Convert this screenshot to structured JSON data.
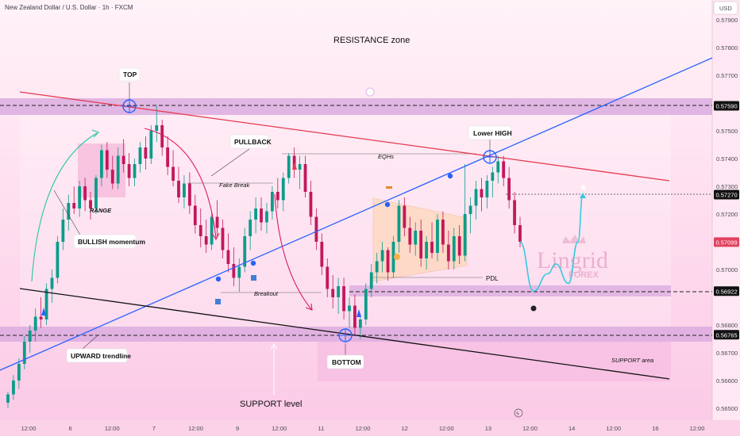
{
  "header": {
    "symbol": "New Zealand Dollar / U.S. Dollar · 1h · FXCM",
    "currency": "USD"
  },
  "colors": {
    "bull": "#0b9c8a",
    "bear": "#c2185b",
    "resistance_line": "#e53950",
    "trendline": "#2962ff",
    "support_line": "#111111",
    "projection": "#38c9e0",
    "zone": "#d8a9df",
    "background": "#ffe9f4"
  },
  "annotations": {
    "resistance_zone": "RESISTANCE zone",
    "top": "TOP",
    "pullback": "PULLBACK",
    "lower_high": "Lower HIGH",
    "eqhs": "EQHs",
    "fake_break": "Fake Break",
    "range": "RANGE",
    "bullish_momentum": "BULLISH momentum",
    "breakout": "Breakout",
    "pdl": "PDL",
    "bottom": "BOTTOM",
    "upward_trendline": "UPWARD trendline",
    "support_level": "SUPPORT level",
    "support_area": "SUPPORT area",
    "watermark_main": "Lingrid",
    "watermark_sub": "FOREX"
  },
  "price_axis": {
    "ticks": [
      "0.57900",
      "0.57800",
      "0.57700",
      "0.57500",
      "0.57400",
      "0.57300",
      "0.57200",
      "0.57000",
      "0.56800",
      "0.56700",
      "0.56600",
      "0.56500"
    ],
    "tags": [
      {
        "label": "0.57590",
        "style": "dark"
      },
      {
        "label": "0.57270",
        "style": "dark"
      },
      {
        "label": "0.57099",
        "style": "red"
      },
      {
        "label": "0.56922",
        "style": "dark"
      },
      {
        "label": "0.56765",
        "style": "dark"
      }
    ]
  },
  "time_axis": {
    "ticks": [
      "12:00",
      "6",
      "12:00",
      "7",
      "12:00",
      "9",
      "12:00",
      "11",
      "12:00",
      "12",
      "12:00",
      "13",
      "12:00",
      "14",
      "12:00",
      "16",
      "12:00"
    ]
  },
  "chart_data": {
    "type": "candlestick",
    "instrument": "New Zealand Dollar / U.S. Dollar",
    "timeframe": "1h",
    "levels": {
      "resistance": 0.5759,
      "target": 0.5727,
      "last_price": 0.57099,
      "mid_support": 0.56922,
      "support": 0.56765
    },
    "candles": [
      [
        0.5652,
        0.5656,
        0.565,
        0.5655
      ],
      [
        0.5655,
        0.5662,
        0.5653,
        0.566
      ],
      [
        0.566,
        0.5668,
        0.5657,
        0.5666
      ],
      [
        0.5666,
        0.5676,
        0.5664,
        0.5674
      ],
      [
        0.5674,
        0.568,
        0.567,
        0.5678
      ],
      [
        0.5678,
        0.5686,
        0.5674,
        0.5683
      ],
      [
        0.5683,
        0.569,
        0.5679,
        0.5682
      ],
      [
        0.5682,
        0.5695,
        0.568,
        0.5693
      ],
      [
        0.5693,
        0.57,
        0.5688,
        0.5697
      ],
      [
        0.5697,
        0.5712,
        0.5695,
        0.571
      ],
      [
        0.571,
        0.5722,
        0.5707,
        0.5718
      ],
      [
        0.5718,
        0.5727,
        0.5714,
        0.5724
      ],
      [
        0.5724,
        0.573,
        0.572,
        0.5722
      ],
      [
        0.5722,
        0.5732,
        0.5719,
        0.573
      ],
      [
        0.573,
        0.5733,
        0.5721,
        0.5725
      ],
      [
        0.5725,
        0.5728,
        0.5718,
        0.5722
      ],
      [
        0.5722,
        0.5734,
        0.572,
        0.5733
      ],
      [
        0.5733,
        0.5745,
        0.573,
        0.5743
      ],
      [
        0.5743,
        0.5746,
        0.5733,
        0.5736
      ],
      [
        0.5736,
        0.5741,
        0.5729,
        0.5731
      ],
      [
        0.5731,
        0.5744,
        0.5729,
        0.5741
      ],
      [
        0.5741,
        0.5747,
        0.5735,
        0.5738
      ],
      [
        0.5738,
        0.5742,
        0.573,
        0.5733
      ],
      [
        0.5733,
        0.574,
        0.573,
        0.5738
      ],
      [
        0.5738,
        0.5746,
        0.5735,
        0.5744
      ],
      [
        0.5744,
        0.5748,
        0.5736,
        0.574
      ],
      [
        0.574,
        0.5752,
        0.5738,
        0.575
      ],
      [
        0.575,
        0.5759,
        0.5746,
        0.5752
      ],
      [
        0.5752,
        0.5754,
        0.5741,
        0.5744
      ],
      [
        0.5744,
        0.5748,
        0.5734,
        0.5737
      ],
      [
        0.5737,
        0.5743,
        0.573,
        0.5732
      ],
      [
        0.5732,
        0.5737,
        0.5724,
        0.5726
      ],
      [
        0.5726,
        0.5734,
        0.5722,
        0.5731
      ],
      [
        0.5731,
        0.5735,
        0.572,
        0.5723
      ],
      [
        0.5723,
        0.5727,
        0.5713,
        0.5716
      ],
      [
        0.5716,
        0.5722,
        0.5708,
        0.5712
      ],
      [
        0.5712,
        0.5718,
        0.5706,
        0.5709
      ],
      [
        0.5709,
        0.5721,
        0.5707,
        0.5719
      ],
      [
        0.5719,
        0.5725,
        0.5712,
        0.5715
      ],
      [
        0.5715,
        0.5718,
        0.5704,
        0.5707
      ],
      [
        0.5707,
        0.5713,
        0.5699,
        0.5702
      ],
      [
        0.5702,
        0.5708,
        0.5694,
        0.5697
      ],
      [
        0.5697,
        0.5704,
        0.5692,
        0.5701
      ],
      [
        0.5701,
        0.5715,
        0.5699,
        0.5712
      ],
      [
        0.5712,
        0.5721,
        0.5707,
        0.5718
      ],
      [
        0.5718,
        0.5726,
        0.5713,
        0.5722
      ],
      [
        0.5722,
        0.5726,
        0.5714,
        0.5717
      ],
      [
        0.5717,
        0.5724,
        0.5713,
        0.5721
      ],
      [
        0.5721,
        0.573,
        0.5718,
        0.5728
      ],
      [
        0.5728,
        0.5733,
        0.5722,
        0.5725
      ],
      [
        0.5725,
        0.5735,
        0.5721,
        0.5733
      ],
      [
        0.5733,
        0.5742,
        0.5731,
        0.5741
      ],
      [
        0.5741,
        0.5744,
        0.5733,
        0.5736
      ],
      [
        0.5736,
        0.5741,
        0.5729,
        0.5738
      ],
      [
        0.5738,
        0.5741,
        0.5726,
        0.5728
      ],
      [
        0.5728,
        0.5732,
        0.5716,
        0.5719
      ],
      [
        0.5719,
        0.5722,
        0.5707,
        0.571
      ],
      [
        0.571,
        0.5713,
        0.5698,
        0.5701
      ],
      [
        0.5701,
        0.5704,
        0.569,
        0.5693
      ],
      [
        0.5693,
        0.5698,
        0.5686,
        0.569
      ],
      [
        0.569,
        0.5697,
        0.5684,
        0.5694
      ],
      [
        0.5694,
        0.5697,
        0.5682,
        0.5685
      ],
      [
        0.5685,
        0.569,
        0.5679,
        0.5687
      ],
      [
        0.5687,
        0.5691,
        0.5676,
        0.5679
      ],
      [
        0.5679,
        0.5684,
        0.5675,
        0.5682
      ],
      [
        0.5682,
        0.5695,
        0.568,
        0.5693
      ],
      [
        0.5693,
        0.5702,
        0.569,
        0.5699
      ],
      [
        0.5699,
        0.5706,
        0.5695,
        0.5703
      ],
      [
        0.5703,
        0.571,
        0.5699,
        0.5707
      ],
      [
        0.5707,
        0.5708,
        0.5696,
        0.5699
      ],
      [
        0.5699,
        0.5712,
        0.5697,
        0.571
      ],
      [
        0.571,
        0.5725,
        0.5706,
        0.5723
      ],
      [
        0.5723,
        0.5726,
        0.5712,
        0.5715
      ],
      [
        0.5715,
        0.5719,
        0.5706,
        0.5709
      ],
      [
        0.5709,
        0.5717,
        0.5705,
        0.5714
      ],
      [
        0.5714,
        0.5718,
        0.5701,
        0.5704
      ],
      [
        0.5704,
        0.5712,
        0.57,
        0.571
      ],
      [
        0.571,
        0.5717,
        0.5704,
        0.5706
      ],
      [
        0.5706,
        0.572,
        0.5703,
        0.5718
      ],
      [
        0.5718,
        0.5721,
        0.5706,
        0.5709
      ],
      [
        0.5709,
        0.5714,
        0.57,
        0.5703
      ],
      [
        0.5703,
        0.5715,
        0.57,
        0.5712
      ],
      [
        0.5712,
        0.5716,
        0.5702,
        0.5705
      ],
      [
        0.5705,
        0.5738,
        0.5703,
        0.572
      ],
      [
        0.572,
        0.5726,
        0.5713,
        0.5723
      ],
      [
        0.5723,
        0.5732,
        0.5718,
        0.5729
      ],
      [
        0.5729,
        0.5733,
        0.5721,
        0.5726
      ],
      [
        0.5726,
        0.5734,
        0.5722,
        0.5732
      ],
      [
        0.5732,
        0.5737,
        0.5726,
        0.5735
      ],
      [
        0.5735,
        0.5741,
        0.5731,
        0.5739
      ],
      [
        0.5739,
        0.5741,
        0.573,
        0.5733
      ],
      [
        0.5733,
        0.5737,
        0.5722,
        0.5725
      ],
      [
        0.5725,
        0.5728,
        0.5713,
        0.5716
      ],
      [
        0.5716,
        0.5719,
        0.5708,
        0.571
      ]
    ],
    "projection": [
      0.57099,
      0.56922,
      0.56985,
      0.5702,
      0.5695,
      0.571,
      0.5727
    ]
  }
}
